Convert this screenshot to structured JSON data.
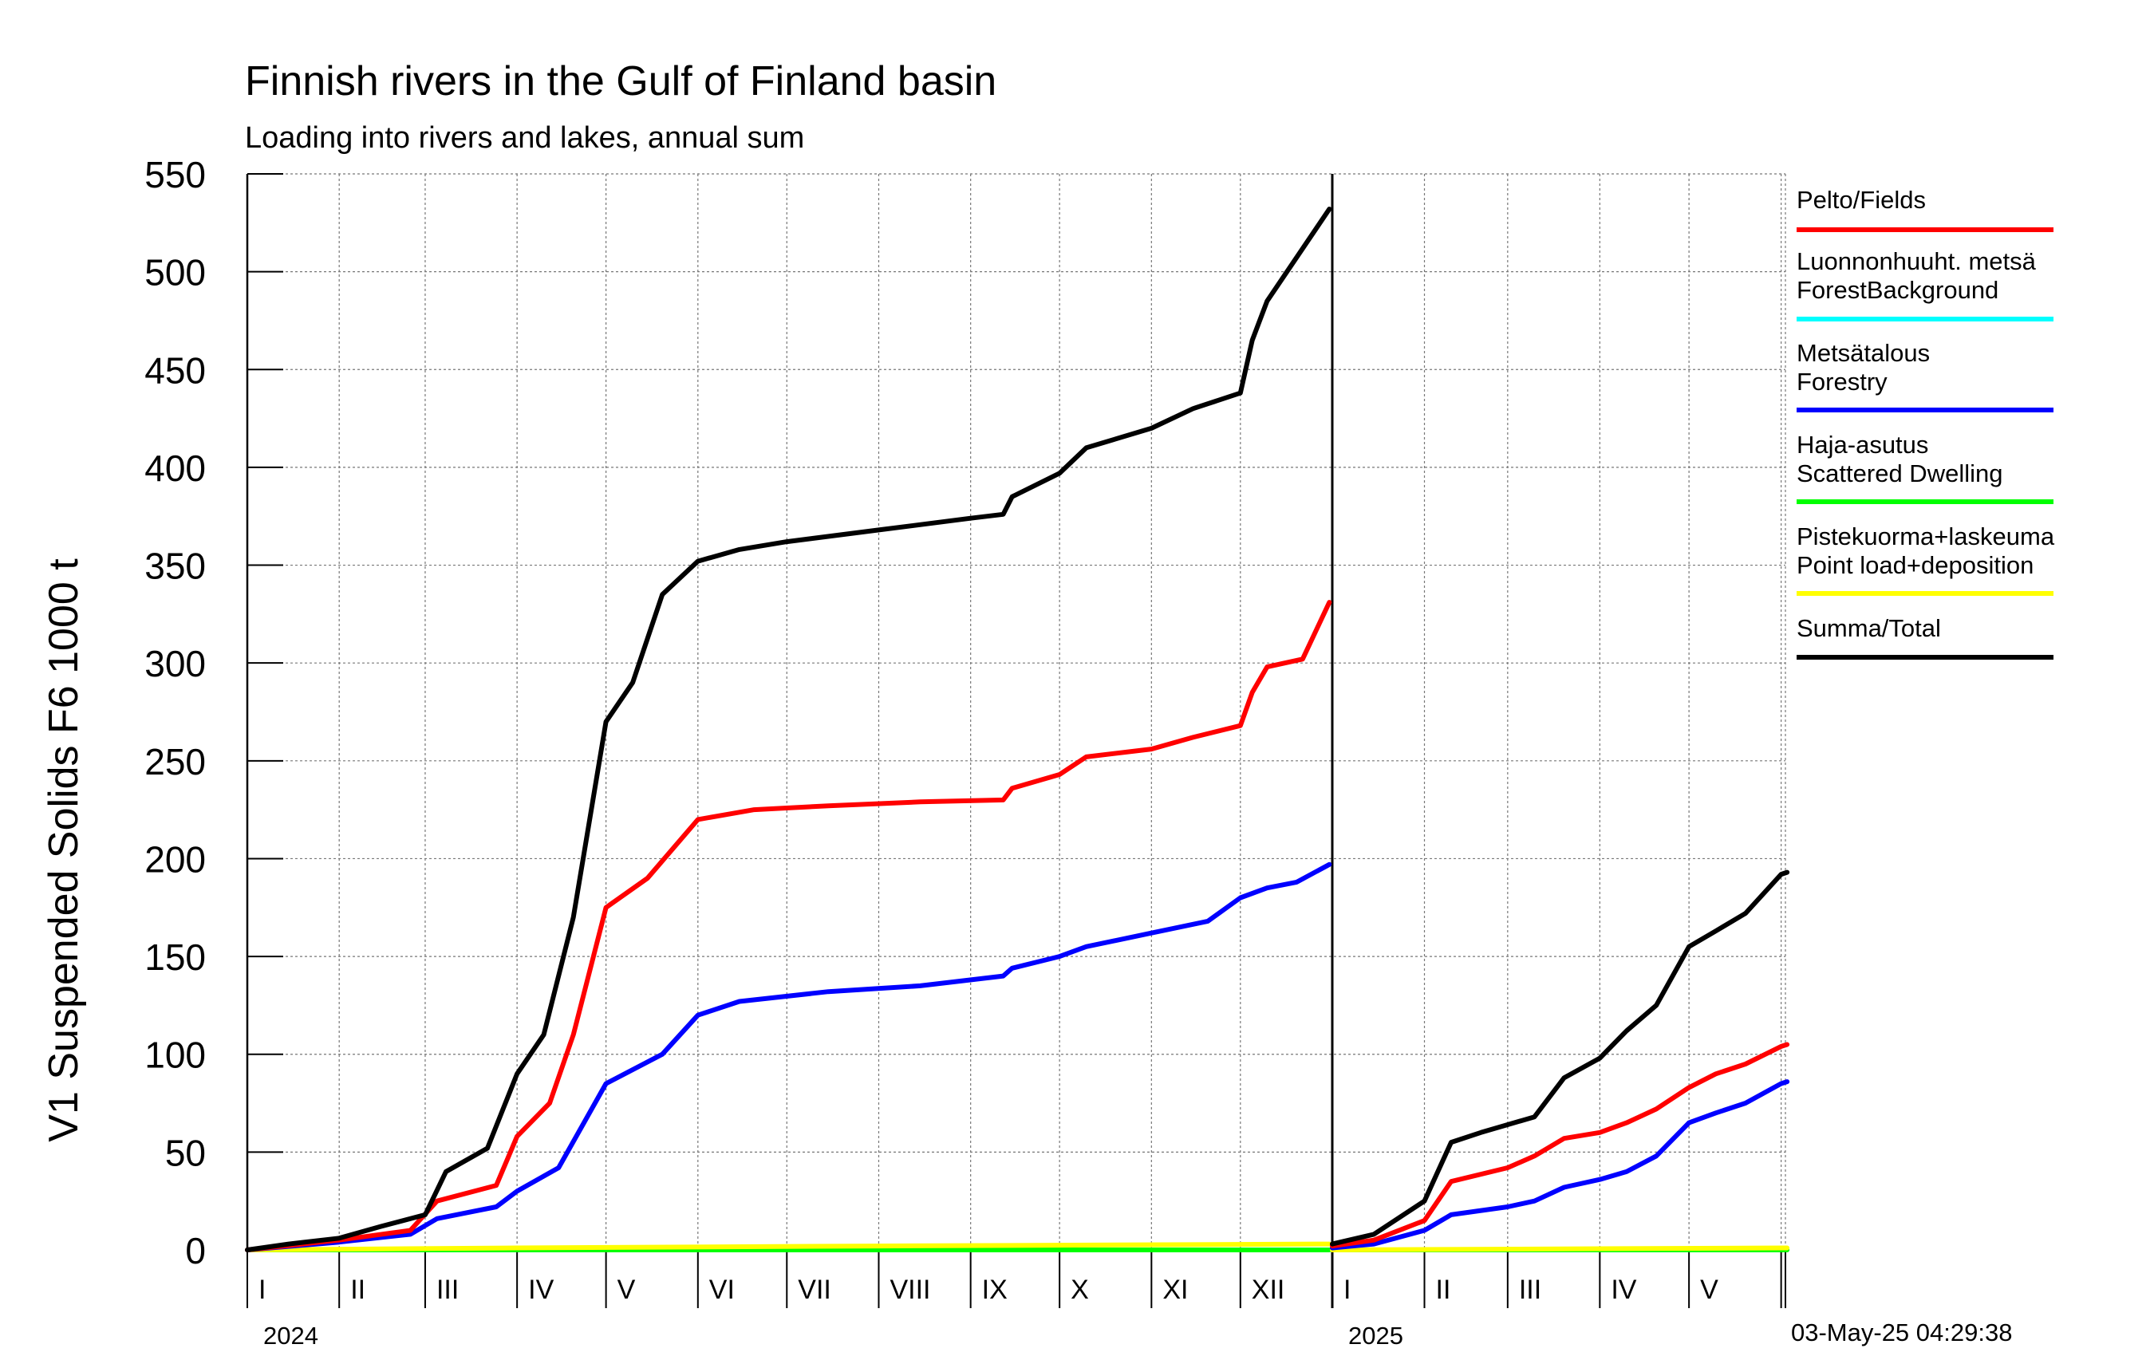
{
  "title": "Finnish rivers in the Gulf of Finland basin",
  "subtitle": "Loading into rivers and lakes, annual sum",
  "timestamp": "03-May-25 04:29:38",
  "legend": [
    {
      "name": "Pelto/Fields",
      "color": "#ff0000"
    },
    {
      "name": "Luonnonhuuht. metsä\nForestBackground",
      "color": "#00ffff"
    },
    {
      "name": "Metsätalous\nForestry",
      "color": "#0000ff"
    },
    {
      "name": "Haja-asutus\nScattered Dwelling",
      "color": "#00ff00"
    },
    {
      "name": "Pistekuorma+laskeuma\nPoint load+deposition",
      "color": "#ffff00"
    },
    {
      "name": "Summa/Total",
      "color": "#000000"
    }
  ],
  "chart_data": {
    "type": "line",
    "title": "Finnish rivers in the Gulf of Finland basin",
    "subtitle": "Loading into rivers and lakes, annual sum",
    "ylabel": "V1 Suspended Solids F6 1000 t",
    "ylim": [
      0,
      550
    ],
    "yticks": [
      0,
      50,
      100,
      150,
      200,
      250,
      300,
      350,
      400,
      450,
      500,
      550
    ],
    "grid": true,
    "legend_position": "right",
    "x_axis": {
      "type": "month",
      "start": "2024-01",
      "end": "2025-05",
      "month_labels": [
        "I",
        "II",
        "III",
        "IV",
        "V",
        "VI",
        "VII",
        "VIII",
        "IX",
        "X",
        "XI",
        "XII",
        "I",
        "II",
        "III",
        "IV",
        "V"
      ],
      "year_labels": [
        "2024",
        "2025"
      ]
    },
    "series": [
      {
        "name": "Summa/Total",
        "color": "#000000",
        "points": [
          [
            "2024-01-01",
            0
          ],
          [
            "2024-01-15",
            3
          ],
          [
            "2024-02-01",
            6
          ],
          [
            "2024-02-15",
            12
          ],
          [
            "2024-03-01",
            18
          ],
          [
            "2024-03-08",
            40
          ],
          [
            "2024-03-22",
            52
          ],
          [
            "2024-04-01",
            90
          ],
          [
            "2024-04-10",
            110
          ],
          [
            "2024-04-20",
            170
          ],
          [
            "2024-05-01",
            270
          ],
          [
            "2024-05-10",
            290
          ],
          [
            "2024-05-20",
            335
          ],
          [
            "2024-06-01",
            352
          ],
          [
            "2024-06-15",
            358
          ],
          [
            "2024-07-01",
            362
          ],
          [
            "2024-08-01",
            368
          ],
          [
            "2024-09-01",
            374
          ],
          [
            "2024-09-12",
            376
          ],
          [
            "2024-09-15",
            385
          ],
          [
            "2024-10-01",
            397
          ],
          [
            "2024-10-10",
            410
          ],
          [
            "2024-11-01",
            420
          ],
          [
            "2024-11-15",
            430
          ],
          [
            "2024-12-01",
            438
          ],
          [
            "2024-12-05",
            465
          ],
          [
            "2024-12-10",
            485
          ],
          [
            "2024-12-31",
            532
          ]
        ]
      },
      {
        "name": "Pelto/Fields",
        "color": "#ff0000",
        "points": [
          [
            "2024-01-01",
            0
          ],
          [
            "2024-02-01",
            5
          ],
          [
            "2024-02-25",
            10
          ],
          [
            "2024-03-05",
            25
          ],
          [
            "2024-03-25",
            33
          ],
          [
            "2024-04-01",
            58
          ],
          [
            "2024-04-12",
            75
          ],
          [
            "2024-04-20",
            110
          ],
          [
            "2024-05-01",
            175
          ],
          [
            "2024-05-15",
            190
          ],
          [
            "2024-06-01",
            220
          ],
          [
            "2024-06-20",
            225
          ],
          [
            "2024-07-15",
            227
          ],
          [
            "2024-08-15",
            229
          ],
          [
            "2024-09-12",
            230
          ],
          [
            "2024-09-15",
            236
          ],
          [
            "2024-10-01",
            243
          ],
          [
            "2024-10-10",
            252
          ],
          [
            "2024-11-01",
            256
          ],
          [
            "2024-11-15",
            262
          ],
          [
            "2024-12-01",
            268
          ],
          [
            "2024-12-05",
            285
          ],
          [
            "2024-12-10",
            298
          ],
          [
            "2024-12-22",
            302
          ],
          [
            "2024-12-31",
            331
          ]
        ]
      },
      {
        "name": "Metsätalous\nForestry",
        "color": "#0000ff",
        "points": [
          [
            "2024-01-01",
            0
          ],
          [
            "2024-02-01",
            4
          ],
          [
            "2024-02-25",
            8
          ],
          [
            "2024-03-05",
            16
          ],
          [
            "2024-03-25",
            22
          ],
          [
            "2024-04-01",
            30
          ],
          [
            "2024-04-15",
            42
          ],
          [
            "2024-05-01",
            85
          ],
          [
            "2024-05-20",
            100
          ],
          [
            "2024-06-01",
            120
          ],
          [
            "2024-06-15",
            127
          ],
          [
            "2024-07-15",
            132
          ],
          [
            "2024-08-15",
            135
          ],
          [
            "2024-09-12",
            140
          ],
          [
            "2024-09-15",
            144
          ],
          [
            "2024-10-01",
            150
          ],
          [
            "2024-10-10",
            155
          ],
          [
            "2024-11-01",
            162
          ],
          [
            "2024-11-20",
            168
          ],
          [
            "2024-12-01",
            180
          ],
          [
            "2024-12-10",
            185
          ],
          [
            "2024-12-20",
            188
          ],
          [
            "2024-12-31",
            197
          ]
        ]
      },
      {
        "name": "Haja-asutus\nScattered Dwelling",
        "color": "#00ff00",
        "points": [
          [
            "2024-01-01",
            0
          ],
          [
            "2024-12-31",
            0
          ]
        ]
      },
      {
        "name": "Pistekuorma+laskeuma\nPoint load+deposition",
        "color": "#ffff00",
        "points": [
          [
            "2024-01-01",
            0
          ],
          [
            "2024-04-01",
            1
          ],
          [
            "2024-08-01",
            2
          ],
          [
            "2024-12-31",
            3
          ]
        ]
      },
      {
        "name": "Summa/Total 2025",
        "color": "#000000",
        "points": [
          [
            "2025-01-01",
            3
          ],
          [
            "2025-01-15",
            8
          ],
          [
            "2025-02-01",
            25
          ],
          [
            "2025-02-10",
            55
          ],
          [
            "2025-02-20",
            60
          ],
          [
            "2025-03-01",
            64
          ],
          [
            "2025-03-10",
            68
          ],
          [
            "2025-03-20",
            88
          ],
          [
            "2025-04-01",
            98
          ],
          [
            "2025-04-10",
            112
          ],
          [
            "2025-04-20",
            125
          ],
          [
            "2025-05-01",
            155
          ],
          [
            "2025-05-10",
            163
          ],
          [
            "2025-05-20",
            172
          ],
          [
            "2025-06-01",
            192
          ],
          [
            "2025-06-03",
            193
          ]
        ]
      },
      {
        "name": "Pelto/Fields 2025",
        "color": "#ff0000",
        "points": [
          [
            "2025-01-01",
            2
          ],
          [
            "2025-01-15",
            5
          ],
          [
            "2025-02-01",
            15
          ],
          [
            "2025-02-10",
            35
          ],
          [
            "2025-03-01",
            42
          ],
          [
            "2025-03-10",
            48
          ],
          [
            "2025-03-20",
            57
          ],
          [
            "2025-04-01",
            60
          ],
          [
            "2025-04-10",
            65
          ],
          [
            "2025-04-20",
            72
          ],
          [
            "2025-05-01",
            83
          ],
          [
            "2025-05-10",
            90
          ],
          [
            "2025-05-20",
            95
          ],
          [
            "2025-06-01",
            104
          ],
          [
            "2025-06-03",
            105
          ]
        ]
      },
      {
        "name": "Metsätalous\nForestry 2025",
        "color": "#0000ff",
        "points": [
          [
            "2025-01-01",
            1
          ],
          [
            "2025-01-15",
            3
          ],
          [
            "2025-02-01",
            10
          ],
          [
            "2025-02-10",
            18
          ],
          [
            "2025-03-01",
            22
          ],
          [
            "2025-03-10",
            25
          ],
          [
            "2025-03-20",
            32
          ],
          [
            "2025-04-01",
            36
          ],
          [
            "2025-04-10",
            40
          ],
          [
            "2025-04-20",
            48
          ],
          [
            "2025-05-01",
            65
          ],
          [
            "2025-05-10",
            70
          ],
          [
            "2025-05-20",
            75
          ],
          [
            "2025-06-01",
            85
          ],
          [
            "2025-06-03",
            86
          ]
        ]
      },
      {
        "name": "Haja-asutus\nScattered Dwelling 2025",
        "color": "#00ff00",
        "points": [
          [
            "2025-01-01",
            0
          ],
          [
            "2025-06-03",
            0
          ]
        ]
      },
      {
        "name": "Pistekuorma+laskeuma\nPoint load+deposition 2025",
        "color": "#ffff00",
        "points": [
          [
            "2025-01-01",
            0
          ],
          [
            "2025-06-03",
            1
          ]
        ]
      }
    ]
  }
}
